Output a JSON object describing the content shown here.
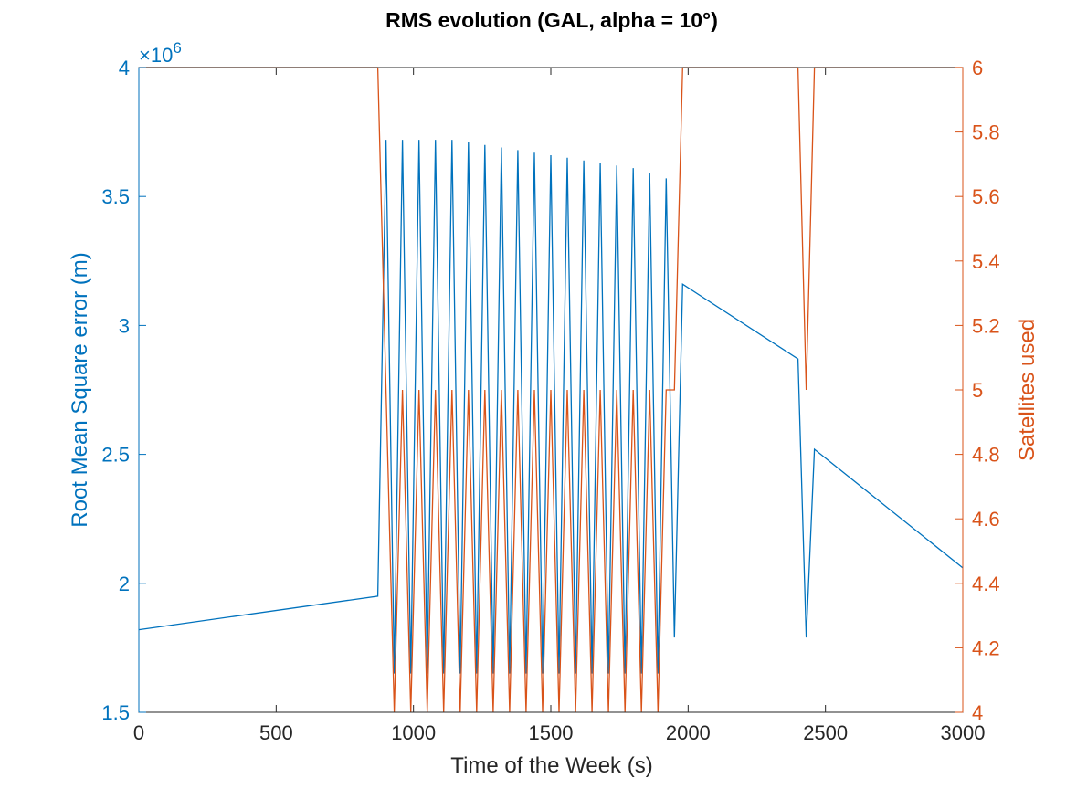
{
  "chart_data": {
    "type": "line",
    "title": "RMS evolution (GAL, alpha = 10°)",
    "xlabel": "Time of the Week (s)",
    "ylabel_left": "Root Mean Square error (m)",
    "ylabel_right": "Satellites used",
    "y_multiplier_label": "×10",
    "y_multiplier_exponent": "6",
    "xlim": [
      0,
      3000
    ],
    "ylim_left": [
      1.5,
      4
    ],
    "ylim_right": [
      4,
      6
    ],
    "x_ticks": [
      "0",
      "500",
      "1000",
      "1500",
      "2000",
      "2500",
      "3000"
    ],
    "y_left_ticks": [
      "1.5",
      "2",
      "2.5",
      "3",
      "3.5",
      "4"
    ],
    "y_right_ticks": [
      "4",
      "4.2",
      "4.4",
      "4.6",
      "4.8",
      "5",
      "5.2",
      "5.4",
      "5.6",
      "5.8",
      "6"
    ],
    "grid": false,
    "colors": {
      "rms": "#0072BD",
      "sats": "#D95319",
      "axes": "#262626"
    },
    "series": [
      {
        "axis": "left",
        "unit_multiplier": 1000000,
        "x": [
          0,
          870,
          870,
          900,
          930,
          960,
          990,
          1020,
          1050,
          1080,
          1110,
          1140,
          1170,
          1200,
          1230,
          1260,
          1290,
          1320,
          1350,
          1380,
          1410,
          1440,
          1470,
          1500,
          1530,
          1560,
          1590,
          1620,
          1650,
          1680,
          1710,
          1740,
          1770,
          1800,
          1830,
          1860,
          1890,
          1920,
          1950,
          1950,
          1980,
          2400,
          2430,
          2460,
          3000
        ],
        "values": [
          1.82,
          1.95,
          1.95,
          3.72,
          1.65,
          3.72,
          1.65,
          3.72,
          1.65,
          3.72,
          1.65,
          3.72,
          1.65,
          3.71,
          1.65,
          3.7,
          1.65,
          3.69,
          1.65,
          3.68,
          1.65,
          3.67,
          1.65,
          3.66,
          1.65,
          3.65,
          1.65,
          3.64,
          1.65,
          3.63,
          1.65,
          3.62,
          1.65,
          3.61,
          1.65,
          3.59,
          1.65,
          3.57,
          1.79,
          1.79,
          3.16,
          2.87,
          1.79,
          2.52,
          2.06
        ]
      },
      {
        "axis": "right",
        "x": [
          0,
          870,
          870,
          930,
          960,
          990,
          1020,
          1050,
          1080,
          1110,
          1140,
          1170,
          1200,
          1230,
          1260,
          1290,
          1320,
          1350,
          1380,
          1410,
          1440,
          1470,
          1500,
          1530,
          1560,
          1590,
          1620,
          1650,
          1680,
          1710,
          1740,
          1770,
          1800,
          1830,
          1860,
          1890,
          1920,
          1950,
          1980,
          2400,
          2430,
          2460,
          3000
        ],
        "values": [
          6,
          6,
          6,
          4,
          5,
          4,
          5,
          4,
          5,
          4,
          5,
          4,
          5,
          4,
          5,
          4,
          5,
          4,
          5,
          4,
          5,
          4,
          5,
          4,
          5,
          4,
          5,
          4,
          5,
          4,
          5,
          4,
          5,
          4,
          5,
          4,
          5,
          5,
          6,
          6,
          5,
          6,
          6
        ]
      }
    ]
  }
}
